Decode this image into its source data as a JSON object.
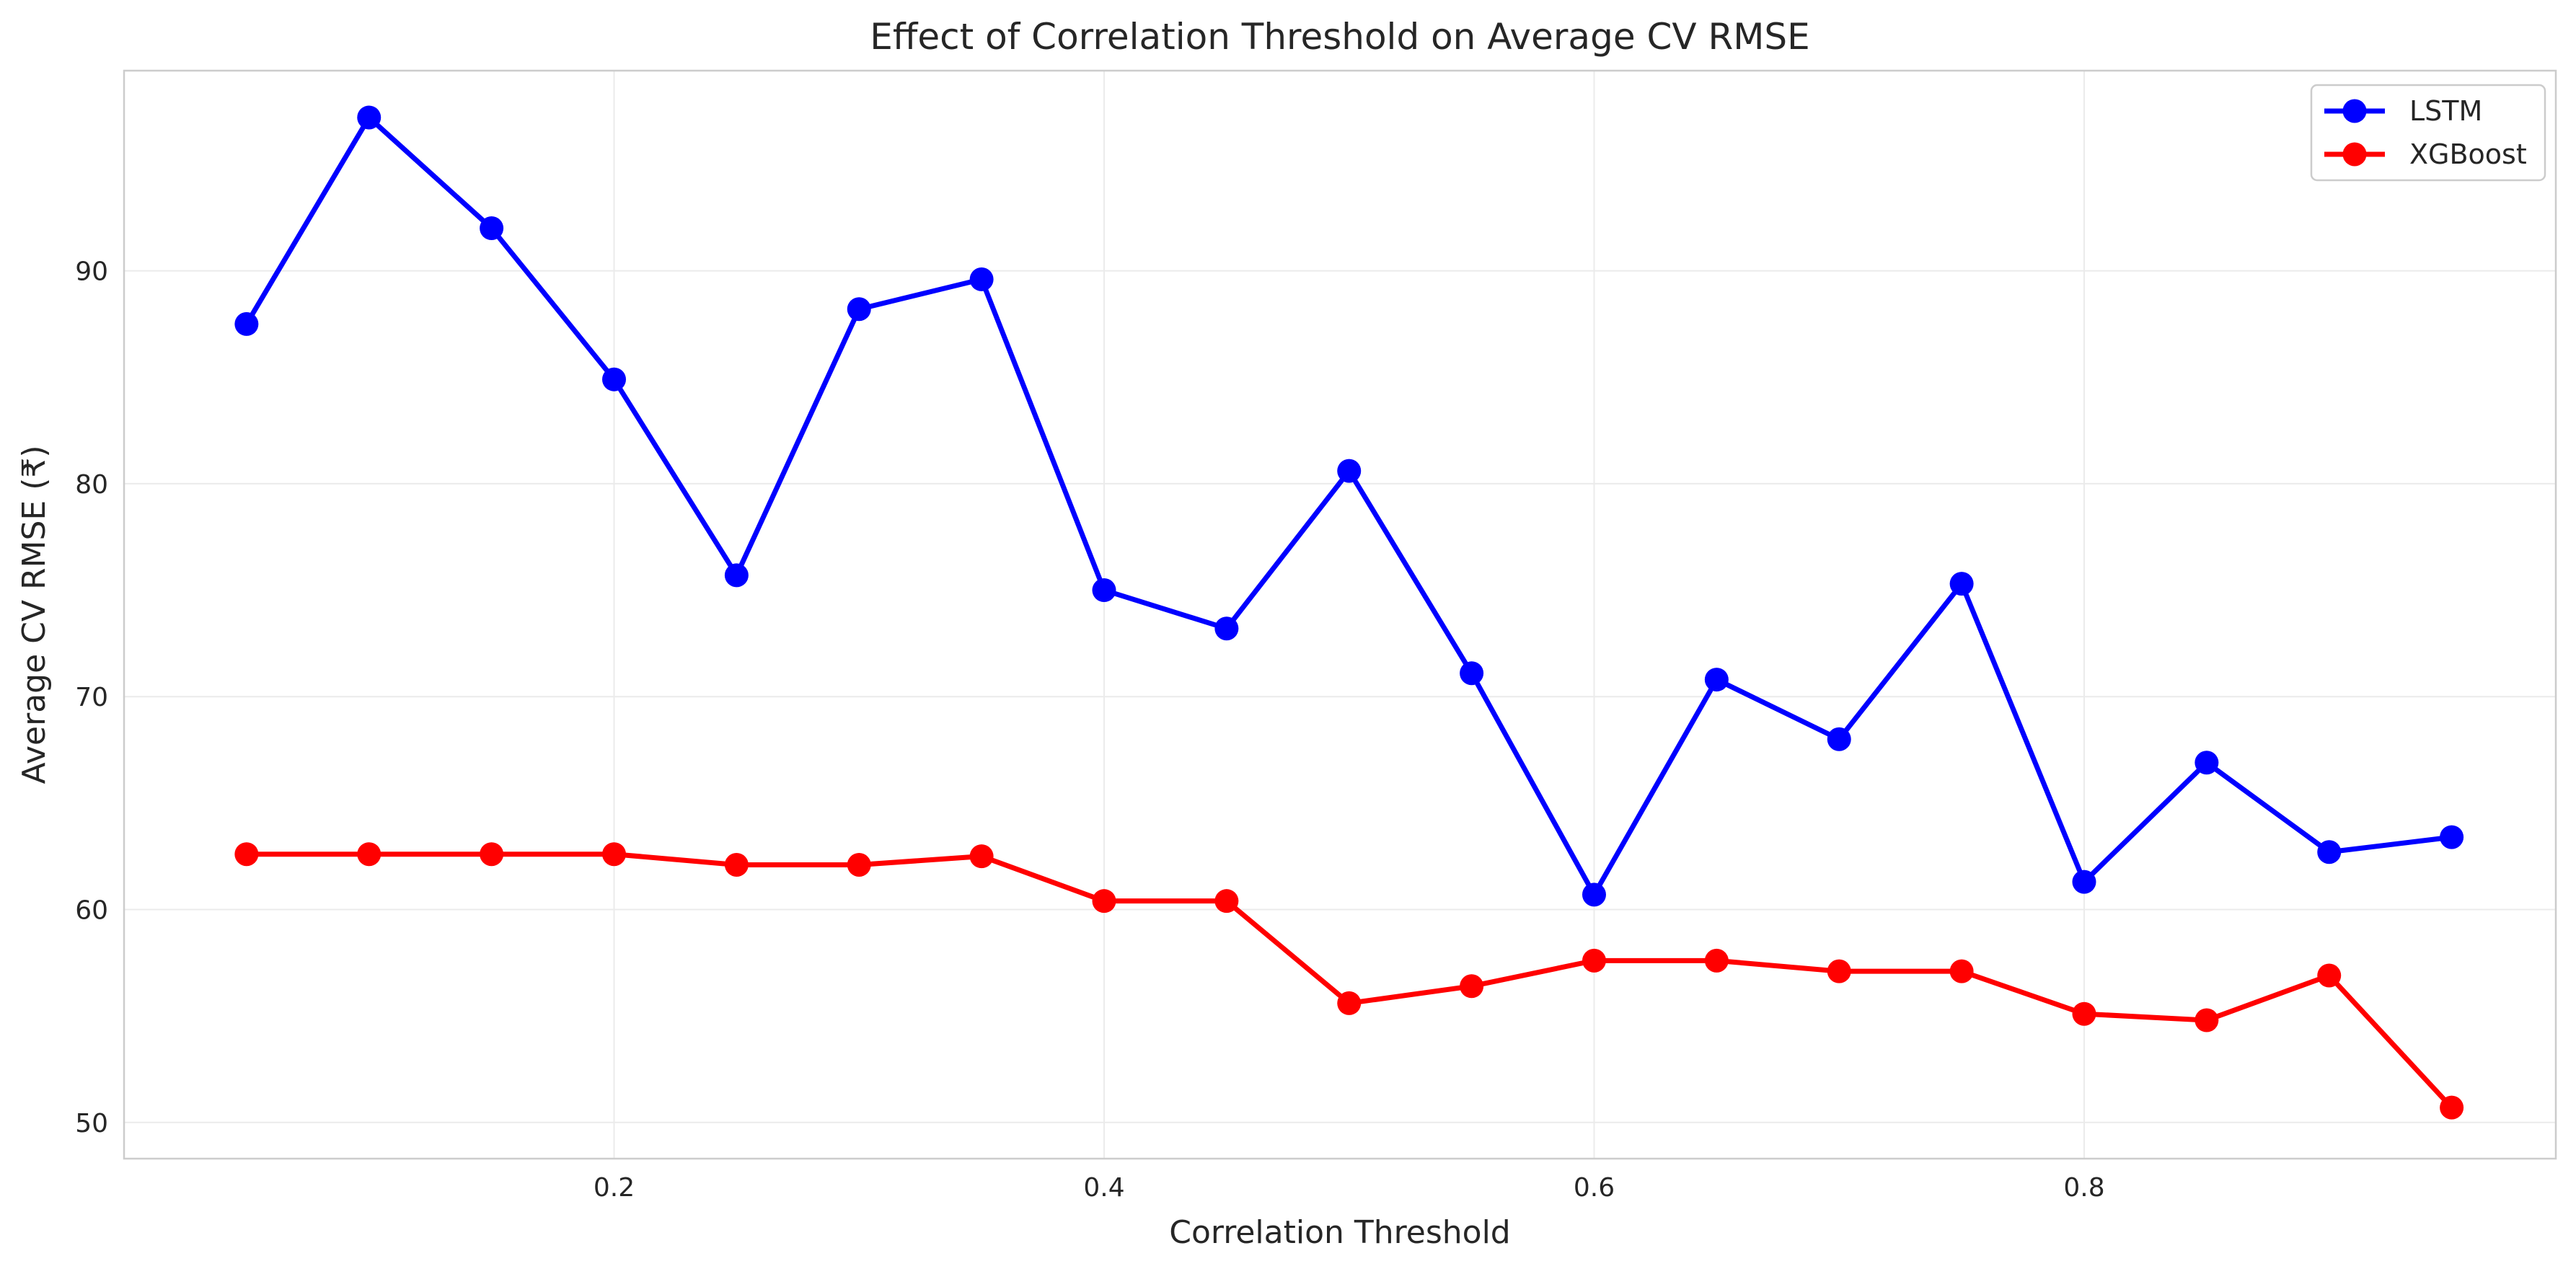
{
  "chart_data": {
    "type": "line",
    "title": "Effect of Correlation Threshold on Average CV RMSE",
    "xlabel": "Correlation Threshold",
    "ylabel": "Average CV RMSE (₹)",
    "xlim": [
      0.0,
      0.9925
    ],
    "ylim": [
      48.3,
      99.4
    ],
    "xticks": [
      0.2,
      0.4,
      0.6,
      0.8
    ],
    "xtick_labels": [
      "0.2",
      "0.4",
      "0.6",
      "0.8"
    ],
    "yticks": [
      50,
      60,
      70,
      80,
      90
    ],
    "ytick_labels": [
      "50",
      "60",
      "70",
      "80",
      "90"
    ],
    "grid": true,
    "legend": "top-right",
    "x": [
      0.05,
      0.1,
      0.15,
      0.2,
      0.25,
      0.3,
      0.35,
      0.4,
      0.45,
      0.5,
      0.55,
      0.6,
      0.65,
      0.7,
      0.75,
      0.8,
      0.85,
      0.9,
      0.95
    ],
    "series": [
      {
        "name": "LSTM",
        "color": "#0000ff",
        "values": [
          87.5,
          97.2,
          92.0,
          84.9,
          75.7,
          88.2,
          89.6,
          75.0,
          73.2,
          80.6,
          71.1,
          60.7,
          70.8,
          68.0,
          75.3,
          61.3,
          66.9,
          62.7,
          63.4
        ]
      },
      {
        "name": "XGBoost",
        "color": "#ff0000",
        "values": [
          62.6,
          62.6,
          62.6,
          62.6,
          62.1,
          62.1,
          62.5,
          60.4,
          60.4,
          55.6,
          56.4,
          57.6,
          57.6,
          57.1,
          57.1,
          55.1,
          54.8,
          56.9,
          50.7
        ]
      }
    ]
  }
}
